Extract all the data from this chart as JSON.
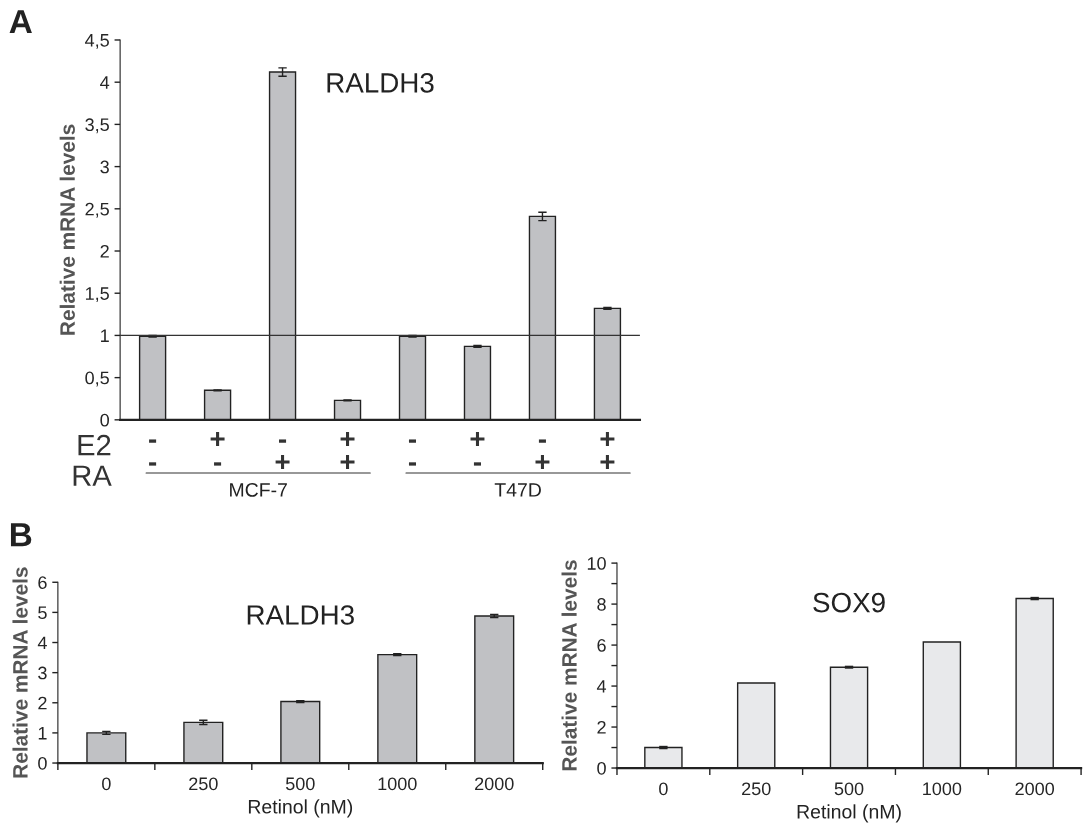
{
  "chart_data": [
    {
      "type": "bar",
      "title": "RALDH3",
      "ylabel": "Relative mRNA levels",
      "categories": [
        "-\n-",
        "+\n-",
        "-\n+",
        "+\n+",
        "-\n-",
        "+\n-",
        "-\n+",
        "+\n+"
      ],
      "values": [
        0.99,
        0.35,
        4.12,
        0.23,
        0.99,
        0.87,
        2.41,
        1.32
      ],
      "errors": [
        0.01,
        0.005,
        0.05,
        0.005,
        0.01,
        0.01,
        0.05,
        0.01
      ],
      "color": "#c0c1c4",
      "ylim": [
        0,
        4.5
      ],
      "yticks": [
        0,
        {
          "value": 0.5,
          "label": "0,5"
        },
        1,
        {
          "value": 1.5,
          "label": "1,5"
        },
        2,
        {
          "value": 2.5,
          "label": "2,5"
        },
        3,
        {
          "value": 3.5,
          "label": "3,5"
        },
        4,
        {
          "value": 4.5,
          "label": "4,5"
        }
      ],
      "ref_lines": [
        {
          "axis": "y",
          "value": 1,
          "color": "#333333"
        }
      ],
      "annotations": [
        "A",
        "E2",
        "RA",
        "MCF-7",
        "T47D"
      ],
      "grid": false,
      "legend": false
    },
    {
      "type": "bar",
      "title": "RALDH3",
      "ylabel": "Relative mRNA levels",
      "xlabel": "Retinol (nM)",
      "categories": [
        "0",
        "250",
        "500",
        "1000",
        "2000"
      ],
      "values": [
        1.0,
        1.35,
        2.04,
        3.6,
        4.88
      ],
      "errors": [
        0.05,
        0.07,
        0.03,
        0.03,
        0.05
      ],
      "color": "#c0c1c4",
      "ylim": [
        0,
        6
      ],
      "yticks": [
        0,
        1,
        2,
        3,
        4,
        5,
        6
      ],
      "annotations": [
        "B"
      ],
      "grid": false,
      "legend": false
    },
    {
      "type": "bar",
      "title": "SOX9",
      "ylabel": "Relative mRNA levels",
      "xlabel": "Retinol (nM)",
      "categories": [
        "0",
        "250",
        "500",
        "1000",
        "2000"
      ],
      "values": [
        1.0,
        4.15,
        4.92,
        6.15,
        8.27
      ],
      "errors": [
        0.05,
        null,
        0.04,
        null,
        0.05
      ],
      "color": "#e8e9eb",
      "ylim": [
        0,
        10
      ],
      "yticks": [
        0,
        {
          "value": 1,
          "label": null
        },
        2,
        {
          "value": 3,
          "label": null
        },
        4,
        {
          "value": 5,
          "label": null
        },
        6,
        {
          "value": 7,
          "label": null
        },
        8,
        {
          "value": 9,
          "label": null
        },
        10
      ],
      "grid": false,
      "legend": false
    }
  ]
}
